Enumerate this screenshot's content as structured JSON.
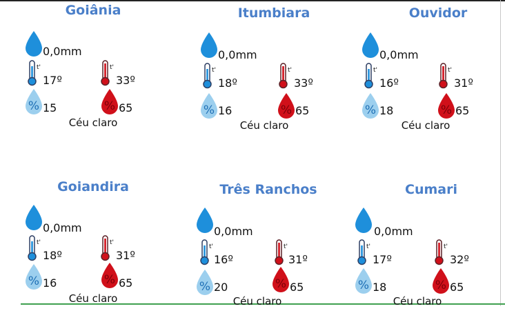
{
  "cities": [
    {
      "name": "Goiânia",
      "rain": "0,0mm",
      "tmin": "17º",
      "tmax": "33º",
      "hmin": "15",
      "hmax": "65",
      "sky": "Céu claro"
    },
    {
      "name": "Itumbiara",
      "rain": "0,0mm",
      "tmin": "18º",
      "tmax": "33º",
      "hmin": "16",
      "hmax": "65",
      "sky": "Céu claro"
    },
    {
      "name": "Ouvidor",
      "rain": "0,0mm",
      "tmin": "16º",
      "tmax": "31º",
      "hmin": "18",
      "hmax": "65",
      "sky": "Céu claro"
    },
    {
      "name": "Goiandira",
      "rain": "0,0mm",
      "tmin": "18º",
      "tmax": "31º",
      "hmin": "16",
      "hmax": "65",
      "sky": "Céu claro"
    },
    {
      "name": "Três Ranchos",
      "rain": "0,0mm",
      "tmin": "16º",
      "tmax": "31º",
      "hmin": "20",
      "hmax": "65",
      "sky": "Céu claro"
    },
    {
      "name": "Cumari",
      "rain": "0,0mm",
      "tmin": "17º",
      "tmax": "32º",
      "hmin": "18",
      "hmax": "65",
      "sky": "Céu claro"
    }
  ],
  "icons": {
    "rain": "rain-drop-icon",
    "tmin": "thermometer-cold-icon",
    "tmax": "thermometer-hot-icon",
    "hmin": "humidity-low-icon",
    "hmax": "humidity-high-icon"
  },
  "colors": {
    "title": "#4a7fc9",
    "drop": "#1e8fdb",
    "light_drop": "#9ccfee",
    "hot": "#d0101a",
    "cold": "#1e8fdb"
  }
}
